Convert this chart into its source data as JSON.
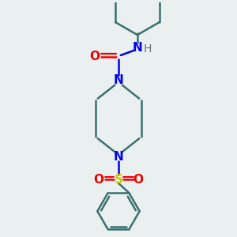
{
  "background_color": "#eaf0f0",
  "bond_color": "#3a7070",
  "nitrogen_color": "#0000ee",
  "oxygen_color": "#ee0000",
  "sulfur_color": "#cccc00",
  "hydrogen_color": "#707070",
  "lw": 1.8,
  "fig_width": 3.0,
  "fig_height": 3.0,
  "dpi": 100,
  "xlim": [
    -1.6,
    1.6
  ],
  "ylim": [
    -3.2,
    3.2
  ]
}
